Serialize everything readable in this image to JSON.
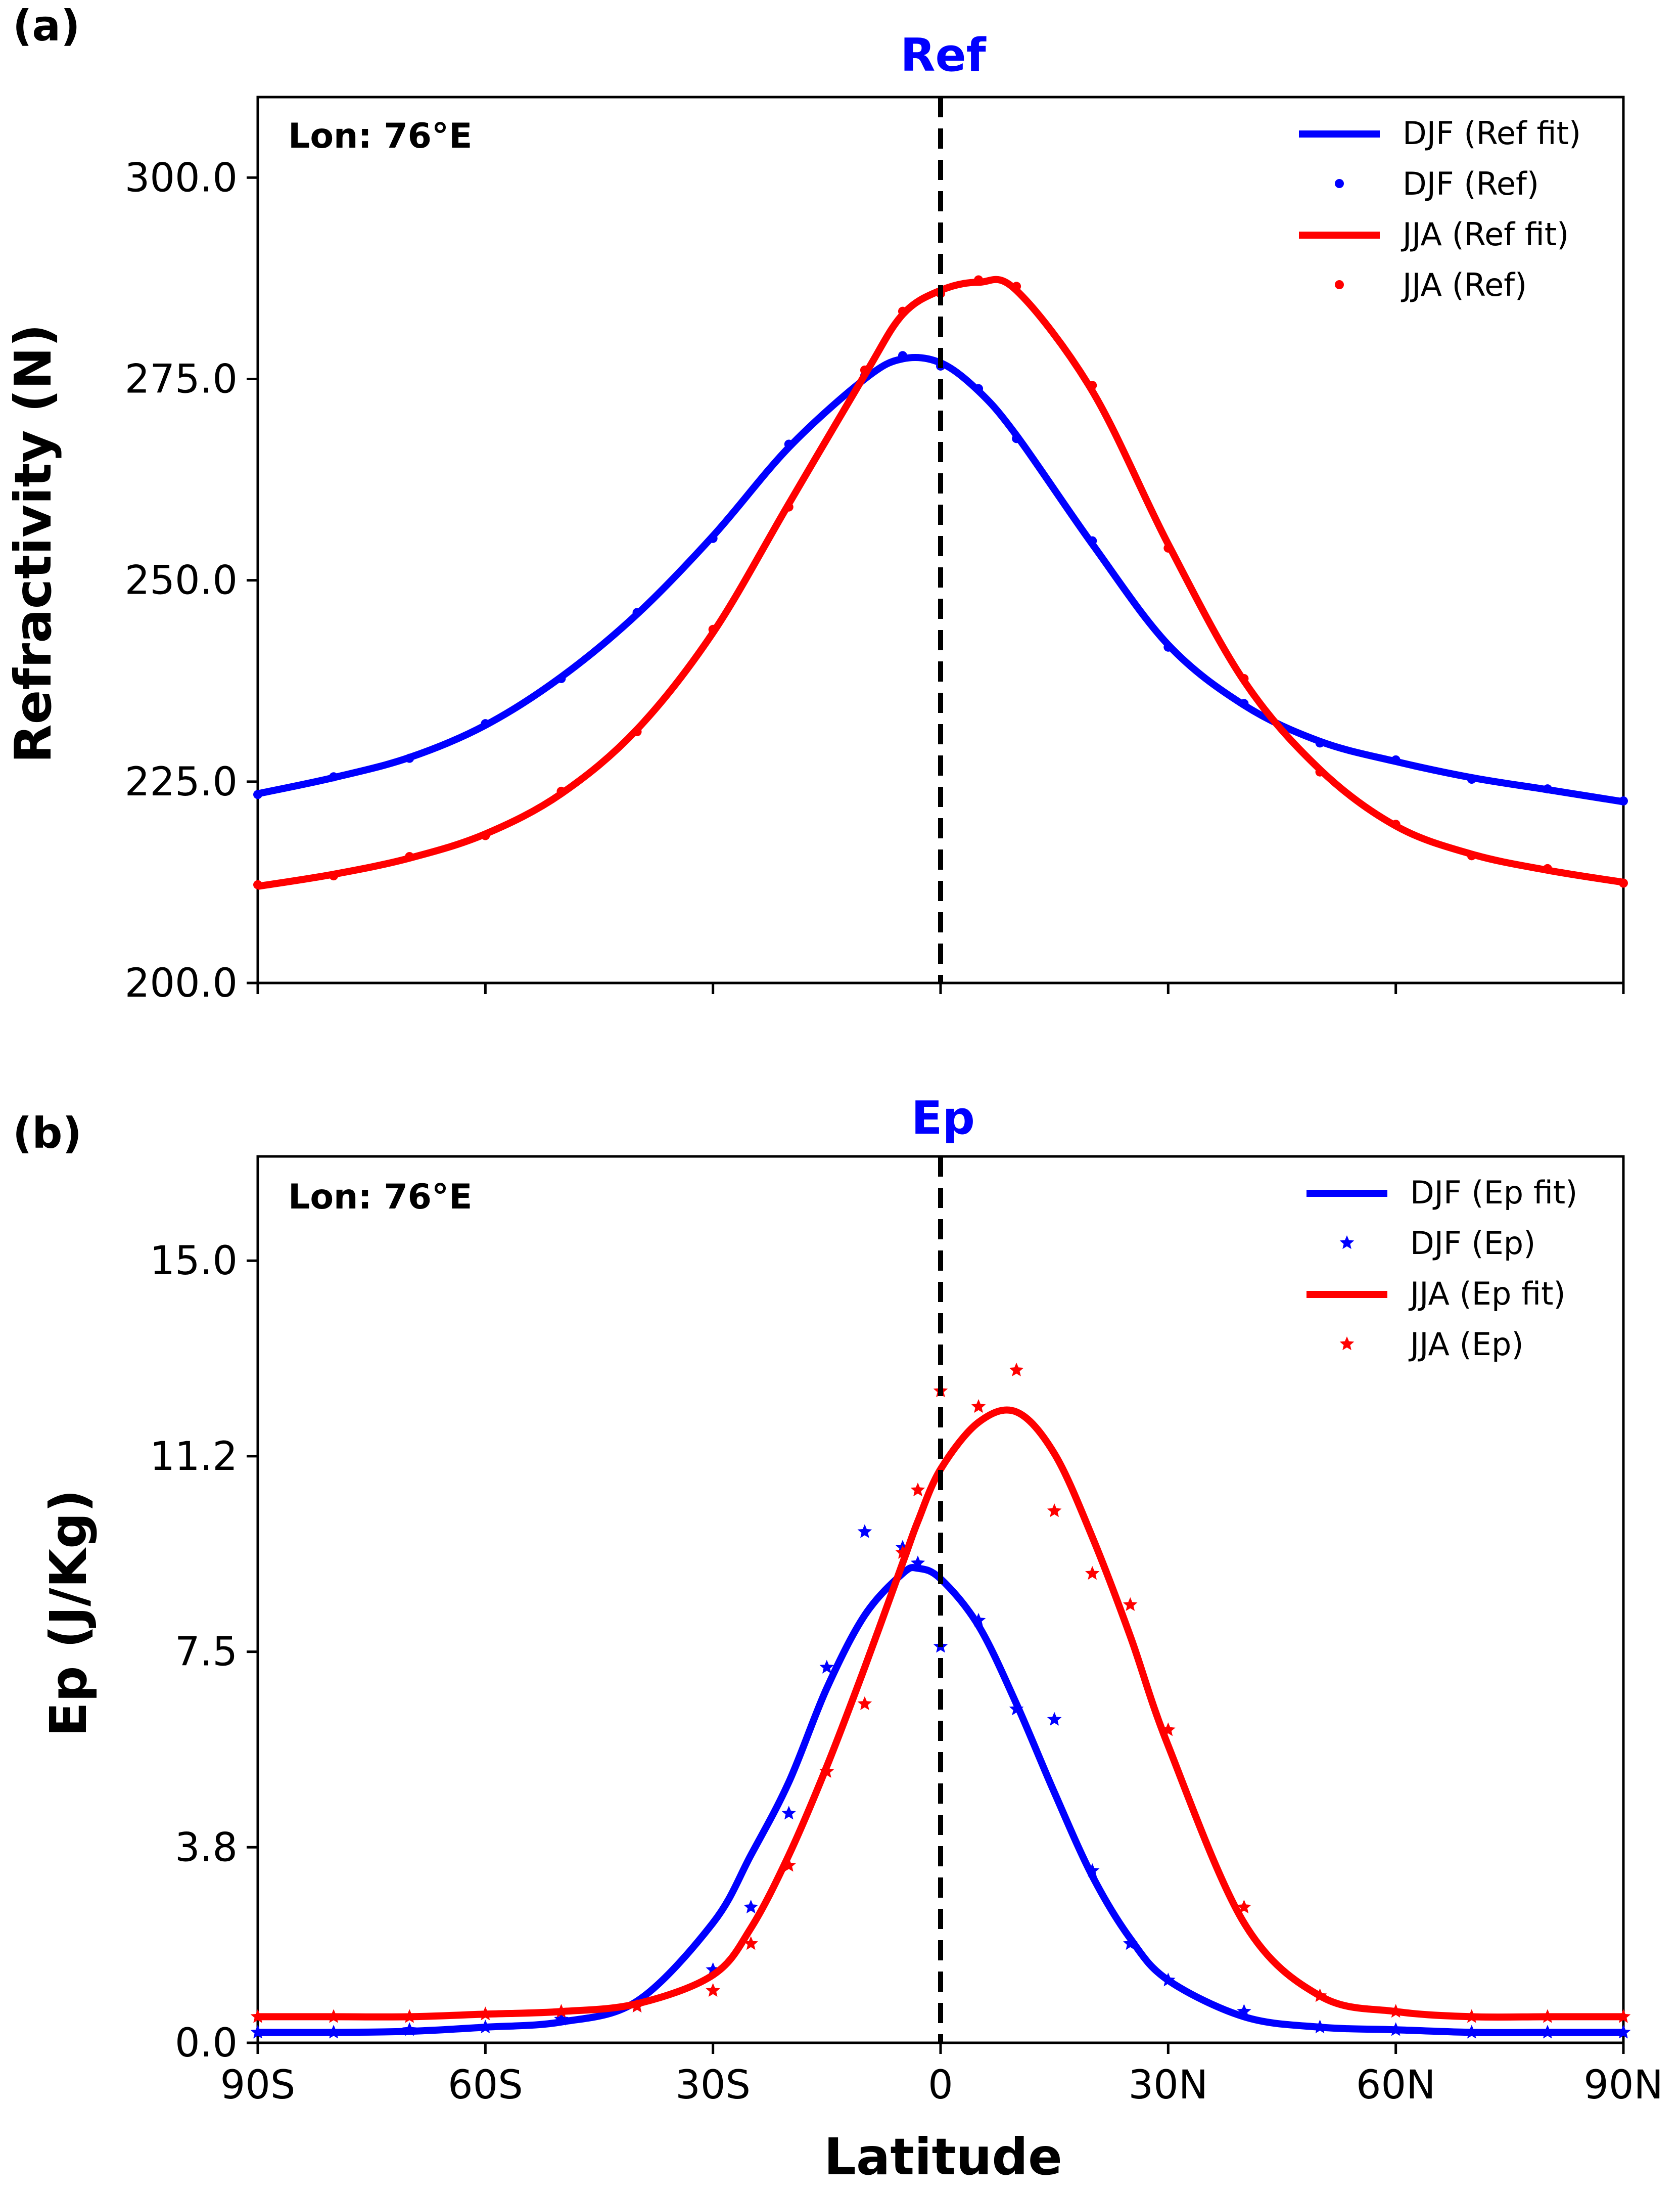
{
  "figure": {
    "xlabel": "Latitude",
    "line_colors": {
      "DJF": "#0000ff",
      "JJA": "#ff0000"
    },
    "title_color": "#0000ff"
  },
  "chart_data": [
    {
      "type": "line",
      "panel_label": "(a)",
      "title": "Ref",
      "annotation": "Lon: 76°E",
      "ylabel": "Refractivity (N)",
      "xlabel": "",
      "xlim": [
        -90,
        90
      ],
      "ylim": [
        200,
        310
      ],
      "xticks": [
        -90,
        -60,
        -30,
        0,
        30,
        60,
        90
      ],
      "xtick_labels": [
        "",
        "",
        "",
        "",
        "",
        "",
        ""
      ],
      "yticks": [
        200,
        225,
        250,
        275,
        300
      ],
      "ytick_labels": [
        "200.0",
        "225.0",
        "250.0",
        "275.0",
        "300.0"
      ],
      "vline_x": 0,
      "legend_position": "top-right",
      "x": [
        -90,
        -80,
        -70,
        -60,
        -50,
        -40,
        -30,
        -20,
        -10,
        -5,
        0,
        5,
        10,
        20,
        30,
        40,
        50,
        60,
        70,
        80,
        90
      ],
      "series": [
        {
          "name": "DJF (Ref fit)",
          "style": "line",
          "color": "#0000ff",
          "values": [
            223.5,
            225.5,
            228.0,
            232.0,
            238.0,
            245.8,
            255.5,
            266.5,
            275.0,
            277.5,
            277.0,
            273.5,
            268.0,
            254.5,
            242.0,
            234.5,
            230.0,
            227.5,
            225.5,
            224.0,
            222.5
          ]
        },
        {
          "name": "DJF (Ref)",
          "style": "scatter",
          "marker": "dot",
          "color": "#0000ff",
          "values": [
            223.4,
            225.6,
            227.9,
            232.2,
            237.8,
            246.0,
            255.2,
            266.9,
            275.4,
            277.9,
            276.6,
            273.8,
            267.6,
            254.9,
            241.7,
            234.7,
            229.8,
            227.7,
            225.3,
            224.1,
            222.6
          ]
        },
        {
          "name": "JJA (Ref fit)",
          "style": "line",
          "color": "#ff0000",
          "values": [
            212.0,
            213.5,
            215.5,
            218.5,
            223.5,
            231.5,
            243.5,
            259.5,
            275.5,
            283.0,
            286.0,
            287.0,
            286.0,
            273.5,
            254.5,
            237.5,
            226.5,
            219.5,
            216.0,
            214.0,
            212.5
          ]
        },
        {
          "name": "JJA (Ref)",
          "style": "scatter",
          "marker": "dot",
          "color": "#ff0000",
          "values": [
            212.2,
            213.3,
            215.7,
            218.3,
            223.8,
            231.2,
            243.9,
            259.1,
            276.1,
            283.4,
            285.6,
            287.3,
            286.5,
            274.2,
            254.0,
            237.8,
            226.2,
            219.7,
            215.8,
            214.2,
            212.4
          ]
        }
      ]
    },
    {
      "type": "line",
      "panel_label": "(b)",
      "title": "Ep",
      "annotation": "Lon: 76°E",
      "ylabel": "Ep (J/Kg)",
      "xlabel": "Latitude",
      "xlim": [
        -90,
        90
      ],
      "ylim": [
        0,
        17
      ],
      "xticks": [
        -90,
        -60,
        -30,
        0,
        30,
        60,
        90
      ],
      "xtick_labels": [
        "90S",
        "60S",
        "30S",
        "0",
        "30N",
        "60N",
        "90N"
      ],
      "yticks": [
        0,
        3.75,
        7.5,
        11.25,
        15
      ],
      "ytick_labels": [
        "0.0",
        "3.8",
        "7.5",
        "11.2",
        "15.0"
      ],
      "vline_x": 0,
      "legend_position": "top-right",
      "x": [
        -90,
        -80,
        -70,
        -60,
        -50,
        -40,
        -30,
        -25,
        -20,
        -15,
        -10,
        -5,
        -3,
        0,
        5,
        10,
        15,
        20,
        25,
        30,
        40,
        50,
        60,
        70,
        80,
        90
      ],
      "series": [
        {
          "name": "DJF (Ep fit)",
          "style": "line",
          "color": "#0000ff",
          "values": [
            0.2,
            0.2,
            0.22,
            0.3,
            0.4,
            0.8,
            2.3,
            3.6,
            5.0,
            6.8,
            8.2,
            9.0,
            9.1,
            8.9,
            8.0,
            6.5,
            4.8,
            3.2,
            2.0,
            1.2,
            0.5,
            0.3,
            0.25,
            0.2,
            0.2,
            0.2
          ]
        },
        {
          "name": "DJF  (Ep)",
          "style": "scatter",
          "marker": "star",
          "color": "#0000ff",
          "values": [
            0.2,
            0.2,
            0.25,
            0.3,
            0.45,
            0.7,
            1.4,
            2.6,
            4.4,
            7.2,
            9.8,
            9.5,
            9.2,
            7.6,
            8.1,
            6.4,
            6.2,
            3.3,
            1.9,
            1.2,
            0.6,
            0.3,
            0.25,
            0.2,
            0.2,
            0.2
          ]
        },
        {
          "name": "JJA (Ep fit)",
          "style": "line",
          "color": "#ff0000",
          "values": [
            0.5,
            0.5,
            0.5,
            0.55,
            0.6,
            0.75,
            1.3,
            2.2,
            3.6,
            5.3,
            7.2,
            9.2,
            10.0,
            11.0,
            11.9,
            12.1,
            11.3,
            9.7,
            7.8,
            5.7,
            2.3,
            0.9,
            0.6,
            0.5,
            0.5,
            0.5
          ]
        },
        {
          "name": "JJA (Ep)",
          "style": "scatter",
          "marker": "star",
          "color": "#ff0000",
          "values": [
            0.5,
            0.5,
            0.5,
            0.55,
            0.6,
            0.7,
            1.0,
            1.9,
            3.4,
            5.2,
            6.5,
            9.4,
            10.6,
            12.5,
            12.2,
            12.9,
            10.2,
            9.0,
            8.4,
            6.0,
            2.6,
            0.9,
            0.6,
            0.5,
            0.5,
            0.5
          ]
        }
      ]
    }
  ]
}
